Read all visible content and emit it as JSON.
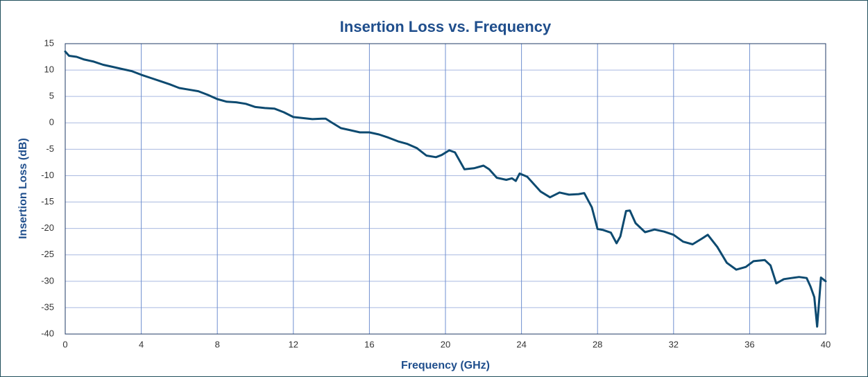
{
  "chart_data": {
    "type": "line",
    "title": "Insertion Loss vs. Frequency",
    "x_label": "Frequency (GHz)",
    "y_label": "Insertion Loss (dB)",
    "xlim": [
      0,
      40
    ],
    "xticks": [
      0,
      4,
      8,
      12,
      16,
      20,
      24,
      28,
      32,
      36,
      40
    ],
    "ylim": [
      -40,
      15
    ],
    "yticks": [
      -40,
      -35,
      -30,
      -25,
      -20,
      -15,
      -10,
      -5,
      0,
      5,
      10,
      15
    ],
    "grid": true,
    "series": [
      {
        "name": "Insertion Loss",
        "color": "#0d4a70",
        "x": [
          0,
          0.2,
          0.6,
          1,
          1.5,
          2,
          2.5,
          3,
          3.5,
          4,
          4.5,
          5,
          5.5,
          6,
          6.5,
          7,
          7.5,
          8,
          8.5,
          9,
          9.5,
          10,
          10.5,
          11,
          11.5,
          12,
          12.5,
          13,
          13.5,
          13.7,
          14,
          14.5,
          15,
          15.5,
          16,
          16.5,
          17,
          17.5,
          18,
          18.5,
          19,
          19.5,
          19.8,
          20.2,
          20.5,
          21,
          21.5,
          22,
          22.3,
          22.7,
          23.2,
          23.5,
          23.7,
          23.9,
          24.3,
          25,
          25.5,
          26,
          26.5,
          27,
          27.3,
          27.7,
          28,
          28.3,
          28.7,
          29,
          29.2,
          29.5,
          29.7,
          30,
          30.5,
          31,
          31.5,
          32,
          32.5,
          33,
          33.5,
          33.8,
          34.3,
          34.8,
          35.3,
          35.8,
          36.2,
          36.8,
          37.1,
          37.4,
          37.8,
          38.2,
          38.6,
          39,
          39.2,
          39.4,
          39.55,
          39.75,
          40
        ],
        "values": [
          13.5,
          12.7,
          12.5,
          12.0,
          11.6,
          11.0,
          10.6,
          10.2,
          9.8,
          9.1,
          8.5,
          7.9,
          7.3,
          6.6,
          6.3,
          6.0,
          5.3,
          4.5,
          4.0,
          3.9,
          3.6,
          3.0,
          2.8,
          2.7,
          2.0,
          1.1,
          0.9,
          0.7,
          0.8,
          0.8,
          0.1,
          -1.0,
          -1.4,
          -1.8,
          -1.8,
          -2.2,
          -2.8,
          -3.5,
          -4.0,
          -4.8,
          -6.2,
          -6.5,
          -6.1,
          -5.2,
          -5.6,
          -8.8,
          -8.6,
          -8.1,
          -8.8,
          -10.4,
          -10.8,
          -10.5,
          -11.0,
          -9.6,
          -10.2,
          -13.0,
          -14.1,
          -13.2,
          -13.6,
          -13.5,
          -13.3,
          -16.0,
          -20.1,
          -20.3,
          -20.8,
          -22.8,
          -21.5,
          -16.7,
          -16.6,
          -19.0,
          -20.7,
          -20.2,
          -20.6,
          -21.2,
          -22.5,
          -23.0,
          -21.9,
          -21.2,
          -23.5,
          -26.5,
          -27.8,
          -27.3,
          -26.2,
          -26.0,
          -27.0,
          -30.4,
          -29.6,
          -29.4,
          -29.2,
          -29.4,
          -31.0,
          -33.0,
          -38.6,
          -29.3,
          -30.0
        ]
      }
    ]
  }
}
